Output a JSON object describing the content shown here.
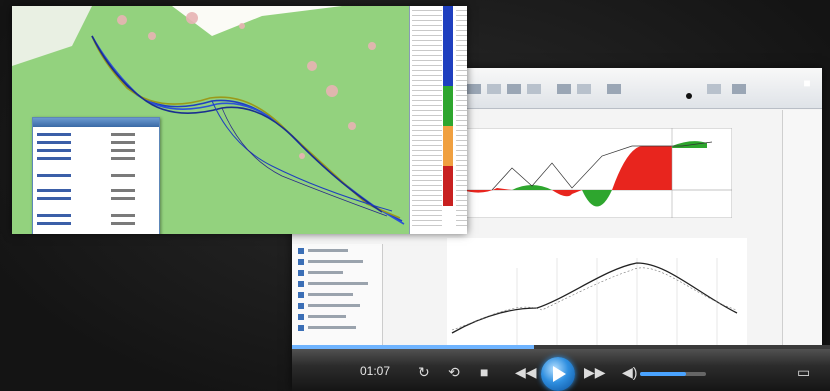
{
  "player": {
    "time_elapsed": "01:07",
    "progress": 0.45,
    "volume": 0.7
  },
  "colors": {
    "accent": "#2f8fe0",
    "cut": "#e8251e",
    "fill": "#2ea62e",
    "map_green": "#93d27e",
    "route_blue": "#1f3fbf",
    "route_olive": "#9a9a1a"
  },
  "controls": {
    "icons": [
      "loop-icon",
      "shuffle-icon",
      "stop-icon",
      "rewind-icon",
      "play-icon",
      "fast-forward-icon",
      "mute-icon",
      "fullscreen-icon"
    ]
  }
}
